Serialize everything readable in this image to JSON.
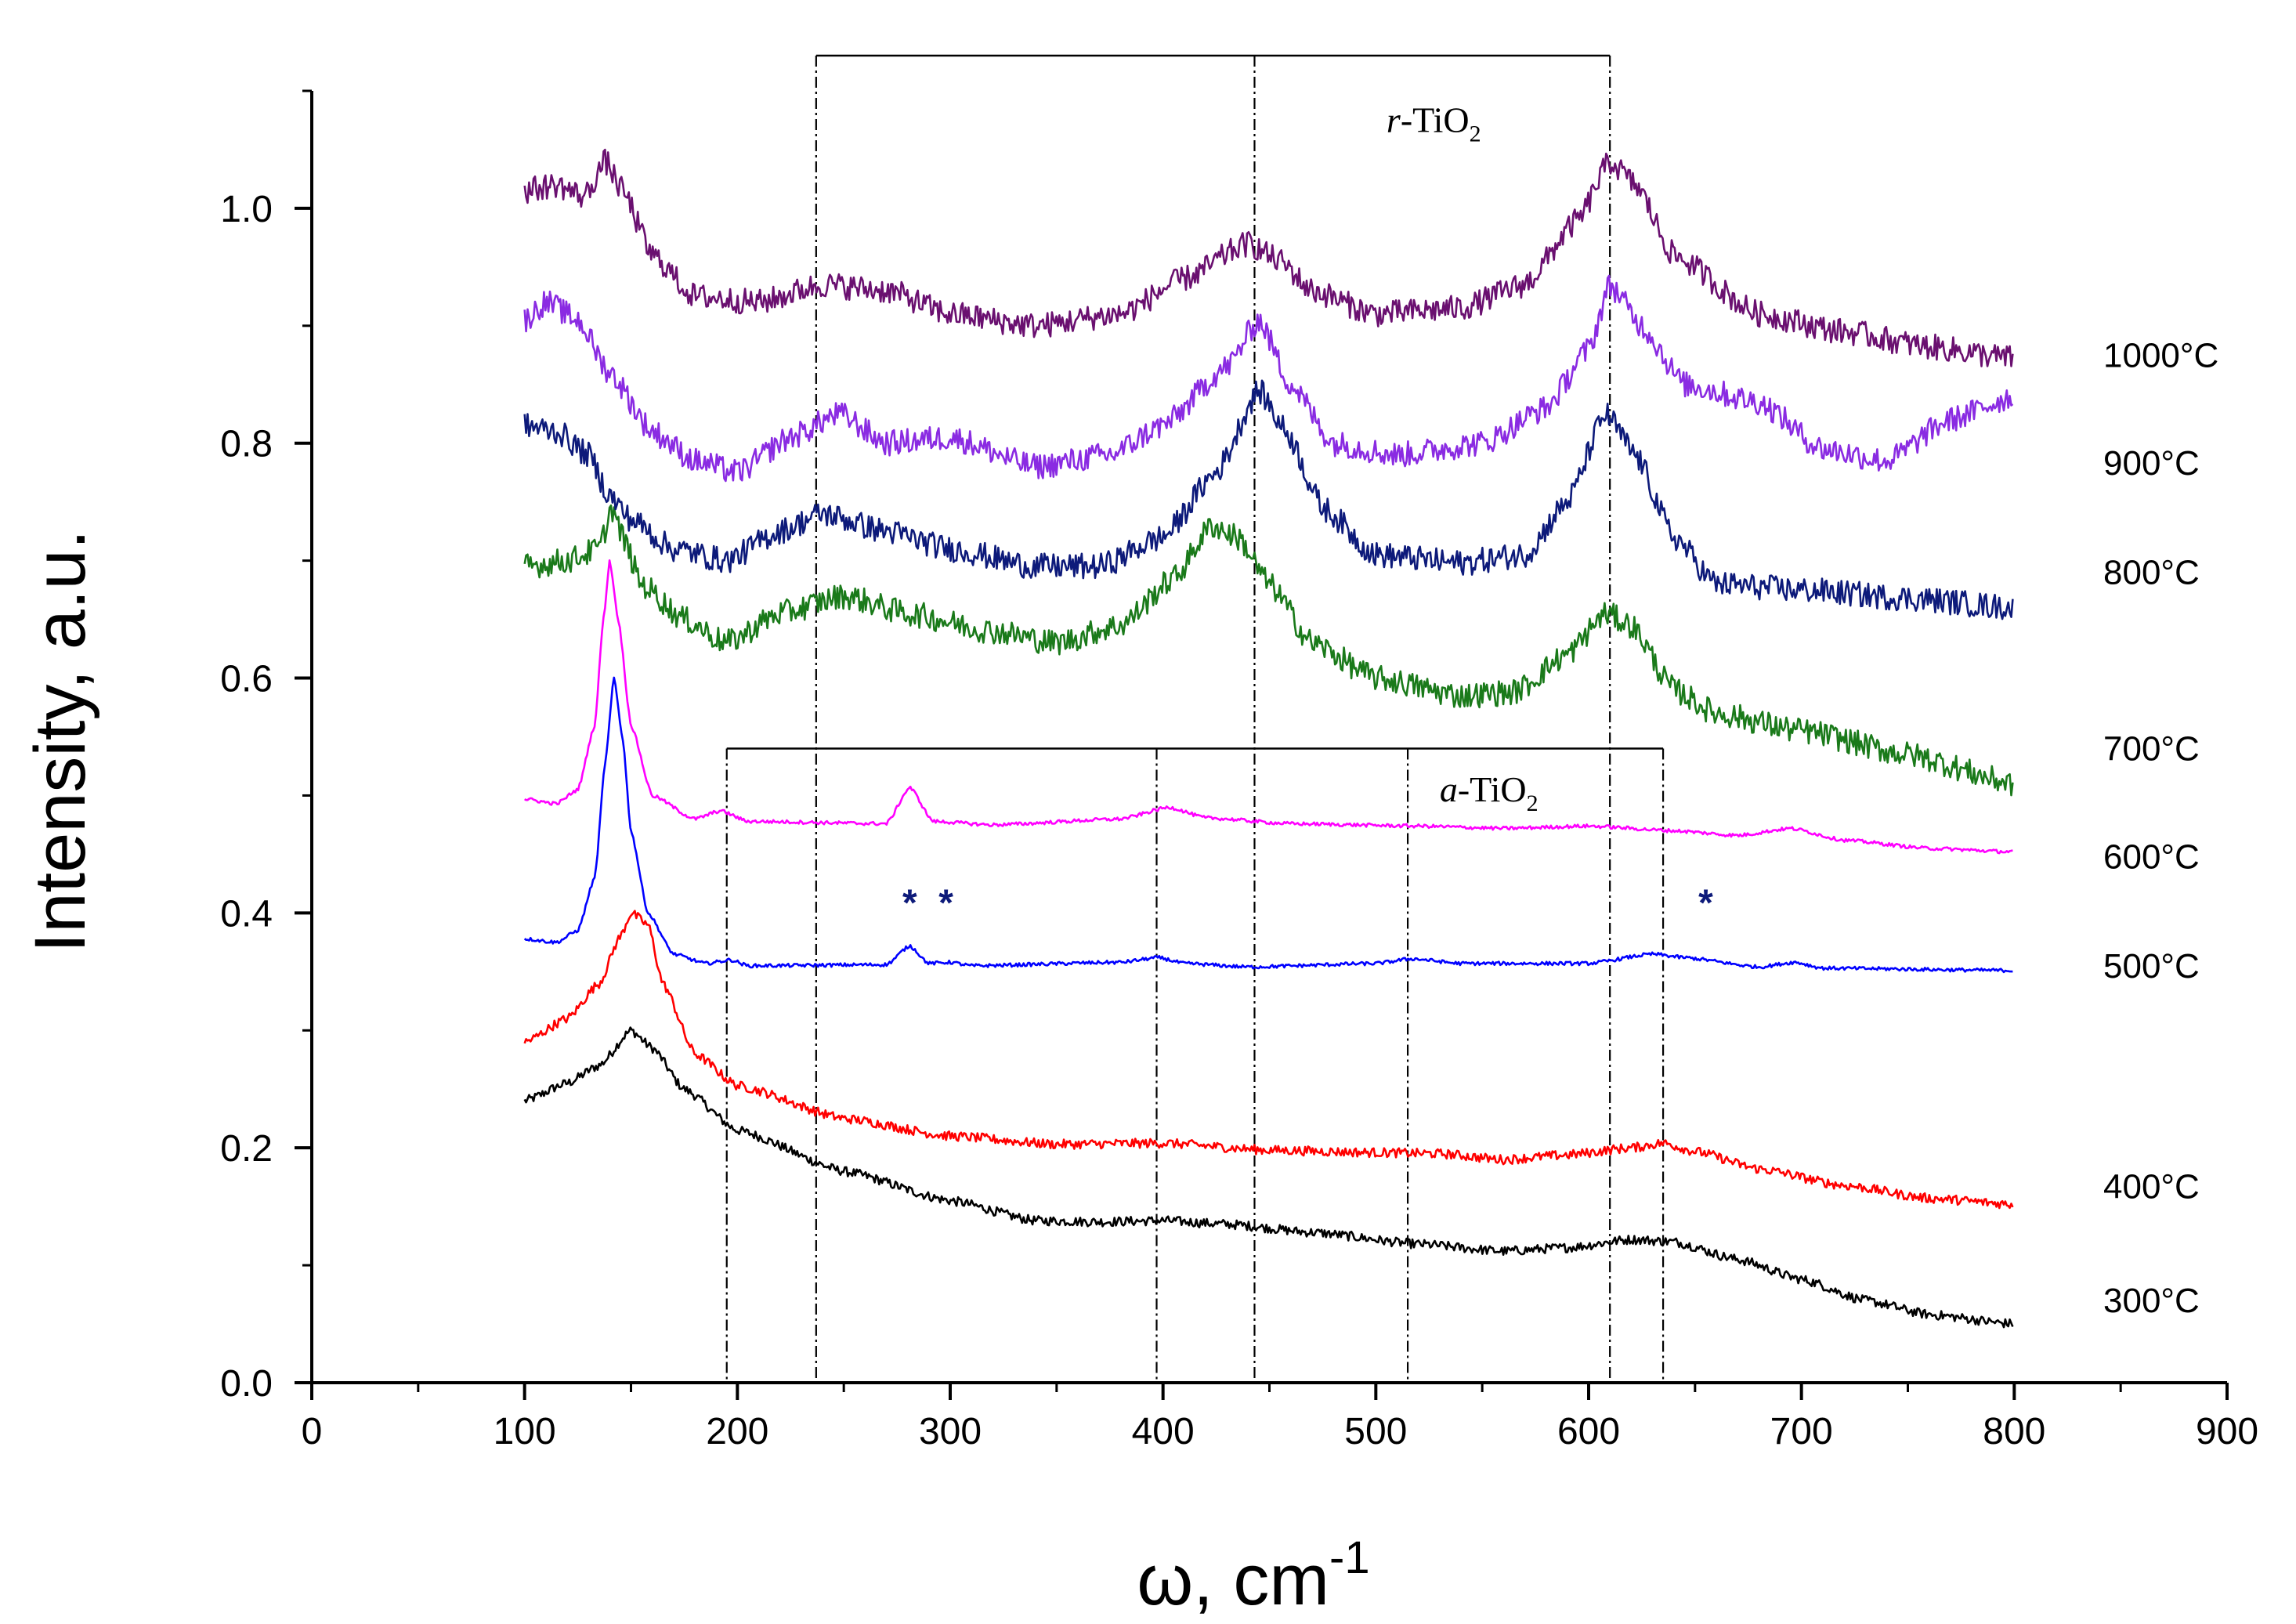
{
  "chart_data": {
    "type": "line",
    "title": "",
    "xlabel": "ω, cm",
    "xlabel_superscript": "-1",
    "ylabel": "Intensity, a.u.",
    "xlim": [
      0,
      900
    ],
    "ylim": [
      0,
      1.1
    ],
    "x_ticks": [
      "0",
      "100",
      "200",
      "300",
      "400",
      "500",
      "600",
      "700",
      "800",
      "900"
    ],
    "x_tick_values": [
      0,
      100,
      200,
      300,
      400,
      500,
      600,
      700,
      800,
      900
    ],
    "y_ticks": [
      "0.0",
      "0.2",
      "0.4",
      "0.6",
      "0.8",
      "1.0"
    ],
    "y_tick_values": [
      0.0,
      0.2,
      0.4,
      0.6,
      0.8,
      1.0
    ],
    "grid": false,
    "series": [
      {
        "name": "300°C",
        "color": "#000000",
        "label_y": 0.07,
        "points": [
          [
            100,
            0.24
          ],
          [
            120,
            0.255
          ],
          [
            135,
            0.27
          ],
          [
            150,
            0.3
          ],
          [
            160,
            0.285
          ],
          [
            175,
            0.25
          ],
          [
            200,
            0.215
          ],
          [
            250,
            0.18
          ],
          [
            300,
            0.155
          ],
          [
            340,
            0.138
          ],
          [
            370,
            0.137
          ],
          [
            400,
            0.138
          ],
          [
            430,
            0.135
          ],
          [
            470,
            0.128
          ],
          [
            520,
            0.118
          ],
          [
            560,
            0.112
          ],
          [
            590,
            0.115
          ],
          [
            620,
            0.122
          ],
          [
            640,
            0.12
          ],
          [
            670,
            0.105
          ],
          [
            700,
            0.088
          ],
          [
            730,
            0.07
          ],
          [
            760,
            0.058
          ],
          [
            800,
            0.05
          ]
        ]
      },
      {
        "name": "400°C",
        "color": "#ff0000",
        "label_y": 0.167,
        "points": [
          [
            100,
            0.29
          ],
          [
            120,
            0.31
          ],
          [
            135,
            0.34
          ],
          [
            145,
            0.38
          ],
          [
            150,
            0.4
          ],
          [
            158,
            0.39
          ],
          [
            165,
            0.34
          ],
          [
            180,
            0.28
          ],
          [
            200,
            0.253
          ],
          [
            250,
            0.225
          ],
          [
            300,
            0.21
          ],
          [
            350,
            0.203
          ],
          [
            400,
            0.204
          ],
          [
            450,
            0.198
          ],
          [
            500,
            0.196
          ],
          [
            530,
            0.195
          ],
          [
            560,
            0.19
          ],
          [
            590,
            0.194
          ],
          [
            620,
            0.2
          ],
          [
            635,
            0.204
          ],
          [
            650,
            0.197
          ],
          [
            680,
            0.182
          ],
          [
            720,
            0.168
          ],
          [
            760,
            0.157
          ],
          [
            800,
            0.152
          ]
        ]
      },
      {
        "name": "500°C",
        "color": "#0000ff",
        "label_y": 0.355,
        "points": [
          [
            100,
            0.378
          ],
          [
            115,
            0.375
          ],
          [
            125,
            0.385
          ],
          [
            133,
            0.43
          ],
          [
            138,
            0.53
          ],
          [
            142,
            0.6
          ],
          [
            146,
            0.55
          ],
          [
            150,
            0.47
          ],
          [
            158,
            0.4
          ],
          [
            170,
            0.365
          ],
          [
            185,
            0.357
          ],
          [
            197,
            0.36
          ],
          [
            205,
            0.355
          ],
          [
            270,
            0.356
          ],
          [
            281,
            0.372
          ],
          [
            290,
            0.357
          ],
          [
            300,
            0.358
          ],
          [
            310,
            0.355
          ],
          [
            380,
            0.358
          ],
          [
            398,
            0.362
          ],
          [
            410,
            0.357
          ],
          [
            440,
            0.354
          ],
          [
            500,
            0.357
          ],
          [
            517,
            0.361
          ],
          [
            540,
            0.357
          ],
          [
            600,
            0.357
          ],
          [
            630,
            0.365
          ],
          [
            645,
            0.362
          ],
          [
            680,
            0.354
          ],
          [
            697,
            0.358
          ],
          [
            710,
            0.353
          ],
          [
            800,
            0.351
          ]
        ]
      },
      {
        "name": "600°C",
        "color": "#ff00ff",
        "label_y": 0.448,
        "points": [
          [
            100,
            0.497
          ],
          [
            115,
            0.493
          ],
          [
            125,
            0.505
          ],
          [
            133,
            0.56
          ],
          [
            137,
            0.65
          ],
          [
            140,
            0.7
          ],
          [
            144,
            0.65
          ],
          [
            150,
            0.56
          ],
          [
            160,
            0.5
          ],
          [
            180,
            0.48
          ],
          [
            192,
            0.487
          ],
          [
            205,
            0.478
          ],
          [
            270,
            0.476
          ],
          [
            281,
            0.507
          ],
          [
            292,
            0.478
          ],
          [
            320,
            0.475
          ],
          [
            380,
            0.48
          ],
          [
            403,
            0.49
          ],
          [
            420,
            0.481
          ],
          [
            460,
            0.476
          ],
          [
            520,
            0.474
          ],
          [
            560,
            0.472
          ],
          [
            600,
            0.474
          ],
          [
            640,
            0.47
          ],
          [
            670,
            0.466
          ],
          [
            695,
            0.472
          ],
          [
            720,
            0.462
          ],
          [
            760,
            0.455
          ],
          [
            800,
            0.452
          ]
        ]
      },
      {
        "name": "700°C",
        "color": "#1a7a1a",
        "label_y": 0.54,
        "points": [
          [
            100,
            0.695
          ],
          [
            120,
            0.7
          ],
          [
            135,
            0.71
          ],
          [
            141,
            0.745
          ],
          [
            146,
            0.72
          ],
          [
            155,
            0.68
          ],
          [
            175,
            0.65
          ],
          [
            195,
            0.63
          ],
          [
            220,
            0.655
          ],
          [
            250,
            0.67
          ],
          [
            280,
            0.655
          ],
          [
            320,
            0.64
          ],
          [
            350,
            0.63
          ],
          [
            380,
            0.645
          ],
          [
            405,
            0.685
          ],
          [
            423,
            0.73
          ],
          [
            435,
            0.72
          ],
          [
            450,
            0.68
          ],
          [
            470,
            0.63
          ],
          [
            500,
            0.6
          ],
          [
            540,
            0.585
          ],
          [
            565,
            0.588
          ],
          [
            590,
            0.62
          ],
          [
            608,
            0.655
          ],
          [
            620,
            0.645
          ],
          [
            640,
            0.59
          ],
          [
            660,
            0.57
          ],
          [
            700,
            0.555
          ],
          [
            750,
            0.535
          ],
          [
            800,
            0.51
          ]
        ]
      },
      {
        "name": "800°C",
        "color": "#0d1a7a",
        "label_y": 0.69,
        "points": [
          [
            100,
            0.815
          ],
          [
            115,
            0.81
          ],
          [
            130,
            0.79
          ],
          [
            140,
            0.755
          ],
          [
            150,
            0.735
          ],
          [
            170,
            0.71
          ],
          [
            195,
            0.7
          ],
          [
            220,
            0.725
          ],
          [
            240,
            0.74
          ],
          [
            270,
            0.725
          ],
          [
            300,
            0.71
          ],
          [
            340,
            0.695
          ],
          [
            370,
            0.695
          ],
          [
            400,
            0.72
          ],
          [
            425,
            0.775
          ],
          [
            445,
            0.845
          ],
          [
            458,
            0.81
          ],
          [
            475,
            0.745
          ],
          [
            500,
            0.705
          ],
          [
            540,
            0.698
          ],
          [
            570,
            0.705
          ],
          [
            590,
            0.75
          ],
          [
            608,
            0.825
          ],
          [
            622,
            0.79
          ],
          [
            640,
            0.72
          ],
          [
            660,
            0.68
          ],
          [
            700,
            0.675
          ],
          [
            750,
            0.668
          ],
          [
            800,
            0.66
          ]
        ]
      },
      {
        "name": "900°C",
        "color": "#8a2be2",
        "label_y": 0.783,
        "points": [
          [
            100,
            0.905
          ],
          [
            110,
            0.92
          ],
          [
            125,
            0.905
          ],
          [
            140,
            0.86
          ],
          [
            160,
            0.81
          ],
          [
            180,
            0.785
          ],
          [
            200,
            0.775
          ],
          [
            225,
            0.805
          ],
          [
            248,
            0.825
          ],
          [
            270,
            0.8
          ],
          [
            300,
            0.805
          ],
          [
            340,
            0.78
          ],
          [
            375,
            0.79
          ],
          [
            400,
            0.815
          ],
          [
            430,
            0.865
          ],
          [
            445,
            0.905
          ],
          [
            460,
            0.85
          ],
          [
            480,
            0.8
          ],
          [
            510,
            0.79
          ],
          [
            550,
            0.8
          ],
          [
            580,
            0.83
          ],
          [
            600,
            0.88
          ],
          [
            610,
            0.935
          ],
          [
            625,
            0.9
          ],
          [
            645,
            0.85
          ],
          [
            680,
            0.835
          ],
          [
            710,
            0.795
          ],
          [
            740,
            0.785
          ],
          [
            770,
            0.82
          ],
          [
            800,
            0.84
          ]
        ]
      },
      {
        "name": "1000°C",
        "color": "#6a1070",
        "label_y": 0.875,
        "points": [
          [
            100,
            1.015
          ],
          [
            115,
            1.02
          ],
          [
            128,
            1.01
          ],
          [
            138,
            1.04
          ],
          [
            146,
            1.015
          ],
          [
            160,
            0.96
          ],
          [
            180,
            0.925
          ],
          [
            210,
            0.92
          ],
          [
            240,
            0.935
          ],
          [
            270,
            0.93
          ],
          [
            300,
            0.91
          ],
          [
            340,
            0.9
          ],
          [
            380,
            0.91
          ],
          [
            410,
            0.94
          ],
          [
            440,
            0.97
          ],
          [
            455,
            0.955
          ],
          [
            470,
            0.93
          ],
          [
            500,
            0.91
          ],
          [
            540,
            0.915
          ],
          [
            570,
            0.935
          ],
          [
            595,
            0.99
          ],
          [
            610,
            1.04
          ],
          [
            622,
            1.02
          ],
          [
            640,
            0.96
          ],
          [
            680,
            0.91
          ],
          [
            720,
            0.895
          ],
          [
            760,
            0.882
          ],
          [
            800,
            0.872
          ]
        ]
      }
    ],
    "reference_phases": [
      {
        "label_italic": "r",
        "label_main": "-TiO",
        "label_sub": "2",
        "bracket_y": 1.13,
        "lines": [
          237,
          443,
          610
        ],
        "label_x": 505,
        "label_y": 1.065
      },
      {
        "label_italic": "a",
        "label_main": "-TiO",
        "label_sub": "2",
        "bracket_y": 0.54,
        "lines": [
          195,
          397,
          515,
          635
        ],
        "label_x": 530,
        "label_y": 0.495
      }
    ],
    "annotations": [
      {
        "text": "*",
        "x": 281,
        "y": 0.41,
        "color": "#0d1a7a"
      },
      {
        "text": "*",
        "x": 298,
        "y": 0.41,
        "color": "#0d1a7a"
      },
      {
        "text": "*",
        "x": 655,
        "y": 0.41,
        "color": "#0d1a7a"
      }
    ]
  }
}
